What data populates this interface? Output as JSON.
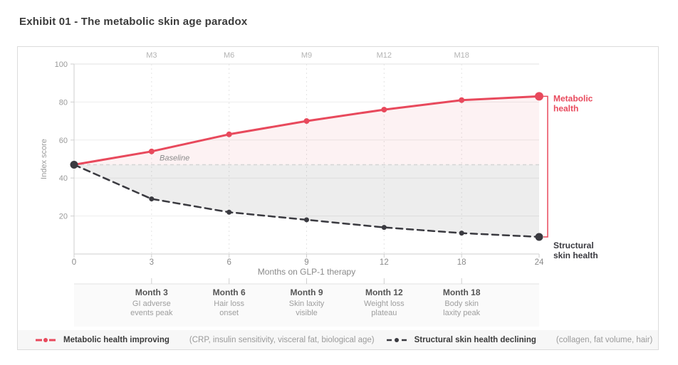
{
  "page": {
    "title": "Exhibit 01 - The metabolic skin age paradox"
  },
  "colors": {
    "metabolic": "#e8495c",
    "structural": "#3a3a40",
    "metabolic_fill": "rgba(232,73,92,0.07)",
    "structural_fill": "rgba(110,110,110,0.12)",
    "grid": "#ededed",
    "grid_dashed": "#e4e4e4",
    "axis": "#cfcfcf",
    "top_axis": "#e2e2e2",
    "baseline": "#d5d5d5",
    "tick_text": "#9a9a9a",
    "top_label_text": "#b3b3b3",
    "annotation_title": "#555555",
    "annotation_text": "#9e9e9e",
    "annotation_bg": "#fafafa",
    "annotation_border": "#e3e3e3"
  },
  "chart_data": {
    "type": "line",
    "x": [
      0,
      3,
      6,
      9,
      12,
      18,
      24
    ],
    "x_tick_labels": [
      "0",
      "3",
      "6",
      "9",
      "12",
      "18",
      "24"
    ],
    "top_axis_labels": [
      {
        "month": 3,
        "label": "M3"
      },
      {
        "month": 6,
        "label": "M6"
      },
      {
        "month": 9,
        "label": "M9"
      },
      {
        "month": 12,
        "label": "M12"
      },
      {
        "month": 18,
        "label": "M18"
      }
    ],
    "xlabel": "Months on GLP-1 therapy",
    "ylabel": "Index score",
    "ylim": [
      0,
      100
    ],
    "yticks": [
      20,
      40,
      60,
      80,
      100
    ],
    "grid": true,
    "series": [
      {
        "name": "Metabolic health improving",
        "style": "solid",
        "values": [
          47,
          54,
          63,
          70,
          76,
          81,
          83
        ]
      },
      {
        "name": "Structural skin health declining",
        "style": "dashed",
        "values": [
          47,
          29,
          22,
          18,
          14,
          11,
          9
        ]
      }
    ],
    "baseline": {
      "value": 47,
      "label": "Baseline"
    },
    "end_labels": {
      "metabolic": [
        "Metabolic",
        "health"
      ],
      "structural": [
        "Structural",
        "skin health"
      ]
    },
    "annotations": [
      {
        "month": 3,
        "title": "Month 3",
        "lines": [
          "GI adverse",
          "events peak"
        ]
      },
      {
        "month": 6,
        "title": "Month 6",
        "lines": [
          "Hair loss",
          "onset"
        ]
      },
      {
        "month": 9,
        "title": "Month 9",
        "lines": [
          "Skin laxity",
          "visible"
        ]
      },
      {
        "month": 12,
        "title": "Month 12",
        "lines": [
          "Weight loss",
          "plateau"
        ]
      },
      {
        "month": 18,
        "title": "Month 18",
        "lines": [
          "Body skin",
          "laxity peak"
        ]
      }
    ]
  },
  "legend": {
    "items": [
      {
        "label": "Metabolic health improving",
        "detail": "(CRP, insulin sensitivity, visceral fat, biological age)"
      },
      {
        "label": "Structural skin health declining",
        "detail": "(collagen, fat volume, hair)"
      }
    ]
  }
}
